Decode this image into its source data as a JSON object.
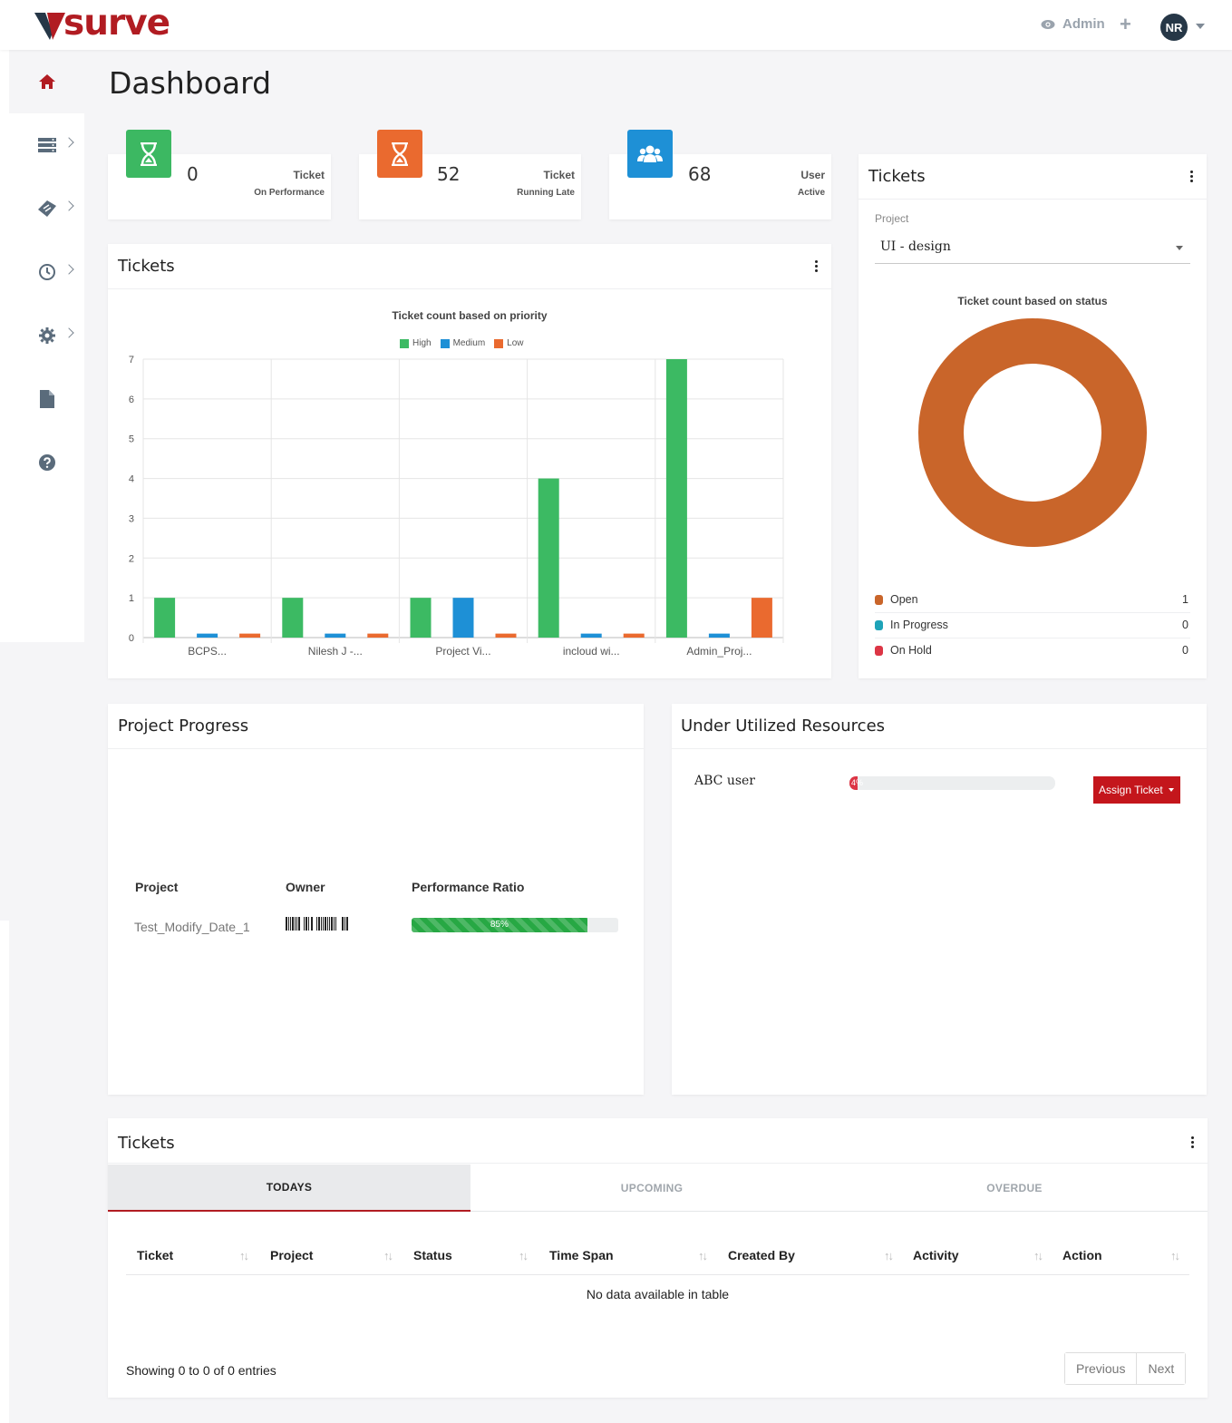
{
  "header": {
    "brand": "surve",
    "admin_label": "Admin",
    "plus": "+",
    "avatar_initials": "NR"
  },
  "page_title": "Dashboard",
  "stats": [
    {
      "value": "0",
      "line1": "Ticket",
      "line2": "On Performance",
      "color": "#3cb862"
    },
    {
      "value": "52",
      "line1": "Ticket",
      "line2": "Running Late",
      "color": "#ea6a2f"
    },
    {
      "value": "68",
      "line1": "User",
      "line2": "Active",
      "color": "#1e90d6"
    }
  ],
  "priority_card": {
    "title": "Tickets",
    "chart_data": {
      "type": "bar",
      "title": "Ticket count based on priority",
      "categories": [
        "BCPS...",
        "Nilesh J -...",
        "Project Vi...",
        "incloud wi...",
        "Admin_Proj..."
      ],
      "series": [
        {
          "name": "High",
          "color": "#3cba63",
          "values": [
            1,
            1,
            1,
            4,
            7
          ]
        },
        {
          "name": "Medium",
          "color": "#1e90d6",
          "values": [
            0.1,
            0.1,
            1,
            0.1,
            0.1
          ]
        },
        {
          "name": "Low",
          "color": "#ea6a2f",
          "values": [
            0.1,
            0.1,
            0.1,
            0.1,
            1
          ]
        }
      ],
      "yticks": [
        "0",
        "1",
        "2",
        "3",
        "4",
        "5",
        "6",
        "7"
      ],
      "ylim": [
        0,
        7
      ]
    }
  },
  "status_card": {
    "title": "Tickets",
    "project_label": "Project",
    "project_value": "UI - design",
    "chart_data": {
      "type": "pie",
      "title": "Ticket count based on status",
      "labels": [
        "Open",
        "In Progress",
        "On Hold"
      ],
      "values": [
        1,
        0,
        0
      ],
      "colors": [
        "#c9652a",
        "#1ea3b8",
        "#dc3545"
      ]
    },
    "rows": [
      {
        "label": "Open",
        "value": "1",
        "color": "#c9652a"
      },
      {
        "label": "In Progress",
        "value": "0",
        "color": "#1ea3b8"
      },
      {
        "label": "On Hold",
        "value": "0",
        "color": "#dc3545"
      }
    ]
  },
  "project_progress": {
    "title": "Project Progress",
    "headers": {
      "project": "Project",
      "owner": "Owner",
      "ratio": "Performance Ratio"
    },
    "row": {
      "project": "Test_Modify_Date_1",
      "ratio_value": 85,
      "ratio_label": "85%"
    }
  },
  "under_utilized": {
    "title": "Under Utilized Resources",
    "user": "ABC user",
    "progress_value": 4,
    "progress_label": "4%",
    "button": "Assign Ticket"
  },
  "tickets_table": {
    "title": "Tickets",
    "tabs": [
      "TODAYS",
      "UPCOMING",
      "OVERDUE"
    ],
    "columns": [
      "Ticket",
      "Project",
      "Status",
      "Time Span",
      "Created By",
      "Activity",
      "Action"
    ],
    "sort_glyph": "↑↓",
    "empty": "No data available in table",
    "showing": "Showing 0 to 0 of 0 entries",
    "prev": "Previous",
    "next": "Next"
  }
}
